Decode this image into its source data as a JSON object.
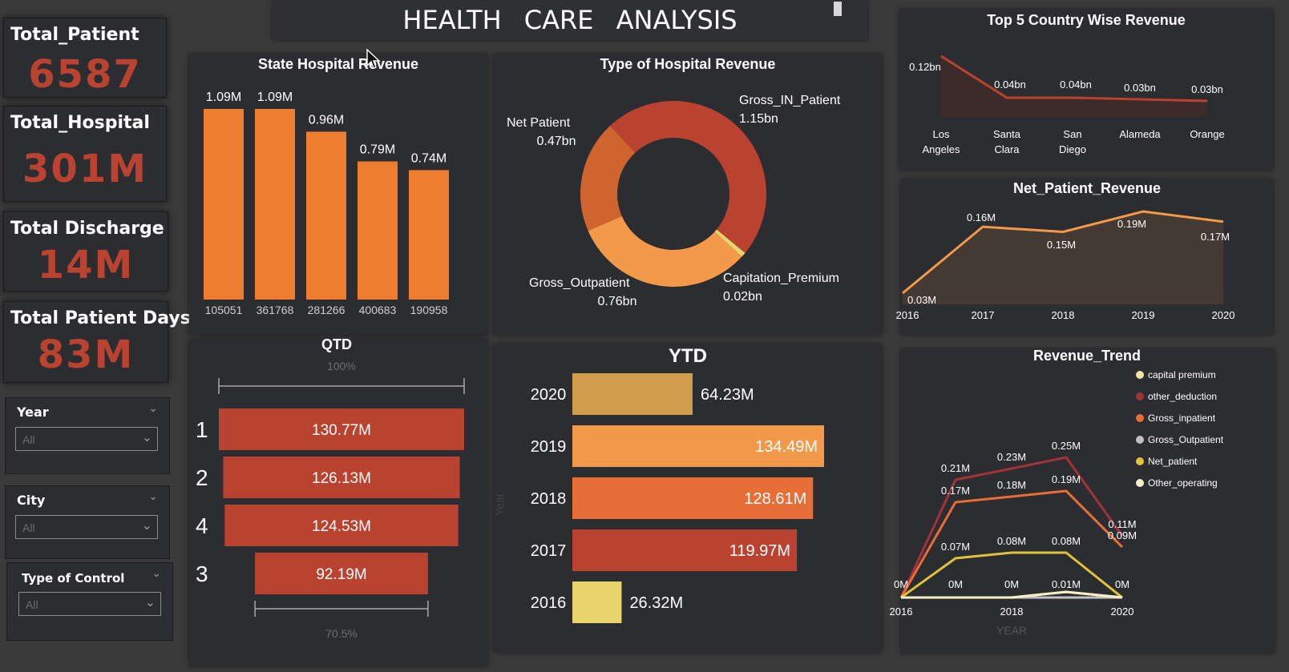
{
  "title": "HEALTH CARE    ANALYSIS",
  "colors": {
    "panel": "#2b2d31",
    "kpi_value": "#b94330",
    "bar_orange": "#ef7d31",
    "red": "#b94330",
    "light_orange": "#f2994a",
    "mid_orange": "#e86e37",
    "gold": "#d39c4d",
    "yellow": "#e9d46b"
  },
  "kpis": [
    {
      "label": "Total_Patient",
      "value": "6587"
    },
    {
      "label": "Total_Hospital",
      "value": "301M"
    },
    {
      "label": "Total Discharge",
      "value": "14M"
    },
    {
      "label": "Total Patient Days",
      "value": "83M"
    }
  ],
  "slicers": [
    {
      "title": "Year",
      "value": "All"
    },
    {
      "title": "City",
      "value": "All"
    },
    {
      "title": "Type of Control",
      "value": "All"
    }
  ],
  "chart_data": [
    {
      "type": "bar",
      "title": "State Hospital Revenue",
      "categories": [
        "105051",
        "361768",
        "281266",
        "400683",
        "190958"
      ],
      "values": [
        1.09,
        1.09,
        0.96,
        0.79,
        0.74
      ],
      "data_labels": [
        "1.09M",
        "1.09M",
        "0.96M",
        "0.79M",
        "0.74M"
      ],
      "ylim": [
        0,
        1.09
      ]
    },
    {
      "type": "pie",
      "title": "Type of Hospital Revenue",
      "slices": [
        {
          "name": "Gross_IN_Patient",
          "label": "1.15bn",
          "value": 1.15
        },
        {
          "name": "Capitation_Premium",
          "label": "0.02bn",
          "value": 0.02
        },
        {
          "name": "Gross_Outpatient",
          "label": "0.76bn",
          "value": 0.76
        },
        {
          "name": "Net Patient",
          "label": "0.47bn",
          "value": 0.47
        }
      ]
    },
    {
      "type": "bar",
      "title": "QTD",
      "categories": [
        "1",
        "2",
        "4",
        "3"
      ],
      "values": [
        130.77,
        126.13,
        124.53,
        92.19
      ],
      "data_labels": [
        "130.77M",
        "126.13M",
        "124.53M",
        "92.19M"
      ],
      "top_percent": "100%",
      "bottom_percent": "70.5%"
    },
    {
      "type": "bar",
      "title": "YTD",
      "ylabel": "Year",
      "categories": [
        "2020",
        "2019",
        "2018",
        "2017",
        "2016"
      ],
      "values": [
        64.23,
        134.49,
        128.61,
        119.97,
        26.32
      ],
      "data_labels": [
        "64.23M",
        "134.49M",
        "128.61M",
        "119.97M",
        "26.32M"
      ],
      "xlim": [
        0,
        134.49
      ]
    },
    {
      "type": "area",
      "title": "Top 5 Country Wise Revenue",
      "categories": [
        "Los Angeles",
        "Santa Clara",
        "San Diego",
        "Alameda",
        "Orange"
      ],
      "values": [
        0.12,
        0.04,
        0.04,
        0.03,
        0.03
      ],
      "data_labels": [
        "0.12bn",
        "0.04bn",
        "0.04bn",
        "0.03bn",
        "0.03bn"
      ]
    },
    {
      "type": "area",
      "title": "Net_Patient_Revenue",
      "x": [
        "2016",
        "2017",
        "2018",
        "2019",
        "2020"
      ],
      "values": [
        0.03,
        0.16,
        0.15,
        0.19,
        0.17
      ],
      "data_labels": [
        "0.03M",
        "0.16M",
        "0.15M",
        "0.19M",
        "0.17M"
      ]
    },
    {
      "type": "line",
      "title": "Revenue_Trend",
      "xlabel": "YEAR",
      "x_ticks": [
        "2016",
        "2018",
        "2020"
      ],
      "legend_position": "top-right",
      "series": [
        {
          "name": "capital premium",
          "color": "#f3e3a4",
          "values": [
            0,
            0,
            0,
            0.01,
            0
          ]
        },
        {
          "name": "other_deduction",
          "color": "#a3333a",
          "values": [
            0,
            0.21,
            0.23,
            0.25,
            0.11
          ],
          "labels": [
            "",
            "0.21M",
            "0.23M",
            "0.25M",
            "0.11M"
          ]
        },
        {
          "name": "Gross_inpatient",
          "color": "#e86e37",
          "values": [
            0,
            0.17,
            0.18,
            0.19,
            0.09
          ],
          "labels": [
            "",
            "0.17M",
            "0.18M",
            "0.19M",
            "0.09M"
          ]
        },
        {
          "name": "Gross_Outpatient",
          "color": "#c0c0c0",
          "values": [
            0,
            0,
            0,
            0,
            0
          ]
        },
        {
          "name": "Net_patient",
          "color": "#e0c23a",
          "values": [
            0,
            0.07,
            0.08,
            0.08,
            0
          ],
          "labels": [
            "",
            "0.07M",
            "0.08M",
            "0.08M",
            ""
          ]
        },
        {
          "name": "Other_operating",
          "color": "#f6efc7",
          "values": [
            0,
            0,
            0,
            0.01,
            0
          ],
          "labels": [
            "0M",
            "0M",
            "0M",
            "0.01M",
            "0M"
          ]
        }
      ]
    }
  ]
}
